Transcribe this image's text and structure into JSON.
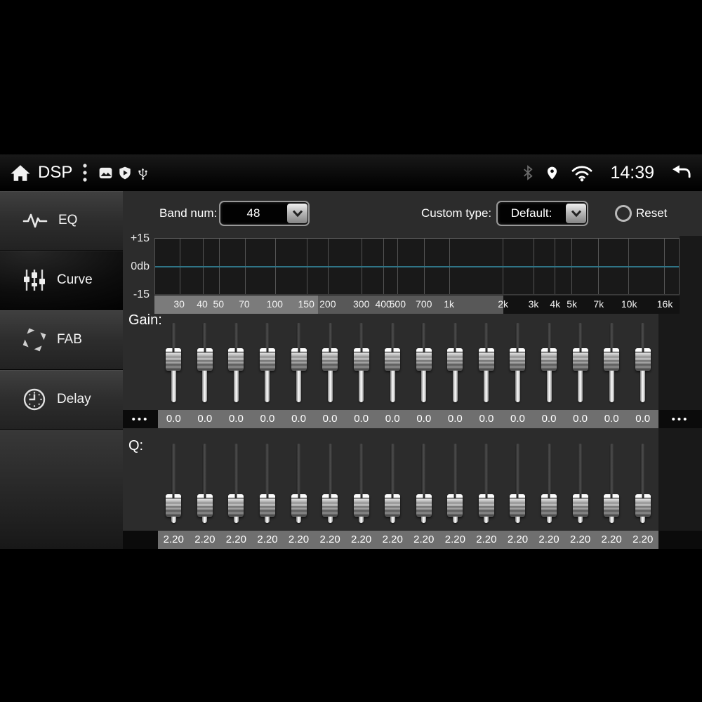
{
  "status_bar": {
    "title": "DSP",
    "time": "14:39",
    "icons": [
      "home-icon",
      "overflow-menu-icon",
      "gallery-icon",
      "shield-play-icon",
      "usb-icon",
      "bluetooth-icon",
      "location-icon",
      "wifi-icon",
      "back-icon"
    ]
  },
  "sidebar": {
    "items": [
      {
        "label": "EQ",
        "icon": "eq-waveform-icon",
        "selected": false
      },
      {
        "label": "Curve",
        "icon": "curve-sliders-icon",
        "selected": true
      },
      {
        "label": "FAB",
        "icon": "fab-arrows-icon",
        "selected": false
      },
      {
        "label": "Delay",
        "icon": "delay-clock-icon",
        "selected": false
      }
    ]
  },
  "controls": {
    "band_num_label": "Band num:",
    "band_num_value": "48",
    "custom_type_label": "Custom type:",
    "custom_type_value": "Default:",
    "reset_label": "Reset"
  },
  "curve_graph": {
    "type": "line",
    "y_axis_labels": [
      "+15",
      "0db",
      "-15"
    ],
    "ylim": [
      -15,
      15
    ],
    "flat_response_db": 0,
    "line_color": "#2f7486",
    "frequencies": [
      {
        "label": "30",
        "pos": 4.7
      },
      {
        "label": "40",
        "pos": 9.1
      },
      {
        "label": "50",
        "pos": 12.2
      },
      {
        "label": "70",
        "pos": 17.1
      },
      {
        "label": "100",
        "pos": 22.9
      },
      {
        "label": "150",
        "pos": 28.9
      },
      {
        "label": "200",
        "pos": 33.0
      },
      {
        "label": "300",
        "pos": 39.4
      },
      {
        "label": "400",
        "pos": 43.6
      },
      {
        "label": "500",
        "pos": 46.3
      },
      {
        "label": "700",
        "pos": 51.3
      },
      {
        "label": "1k",
        "pos": 56.1
      },
      {
        "label": "2k",
        "pos": 66.4
      },
      {
        "label": "3k",
        "pos": 72.2
      },
      {
        "label": "4k",
        "pos": 76.3
      },
      {
        "label": "5k",
        "pos": 79.5
      },
      {
        "label": "7k",
        "pos": 84.6
      },
      {
        "label": "10k",
        "pos": 90.4
      },
      {
        "label": "16k",
        "pos": 97.2
      }
    ]
  },
  "gain": {
    "label": "Gain:",
    "overflow_left": "•••",
    "overflow_right": "•••",
    "values": [
      "0.0",
      "0.0",
      "0.0",
      "0.0",
      "0.0",
      "0.0",
      "0.0",
      "0.0",
      "0.0",
      "0.0",
      "0.0",
      "0.0",
      "0.0",
      "0.0",
      "0.0",
      "0.0"
    ]
  },
  "q": {
    "label": "Q:",
    "values": [
      "2.20",
      "2.20",
      "2.20",
      "2.20",
      "2.20",
      "2.20",
      "2.20",
      "2.20",
      "2.20",
      "2.20",
      "2.20",
      "2.20",
      "2.20",
      "2.20",
      "2.20",
      "2.20"
    ]
  },
  "colors": {
    "accent_line": "#2f7486",
    "value_strip": "#6f6f6f",
    "panel": "#2c2c2c"
  }
}
